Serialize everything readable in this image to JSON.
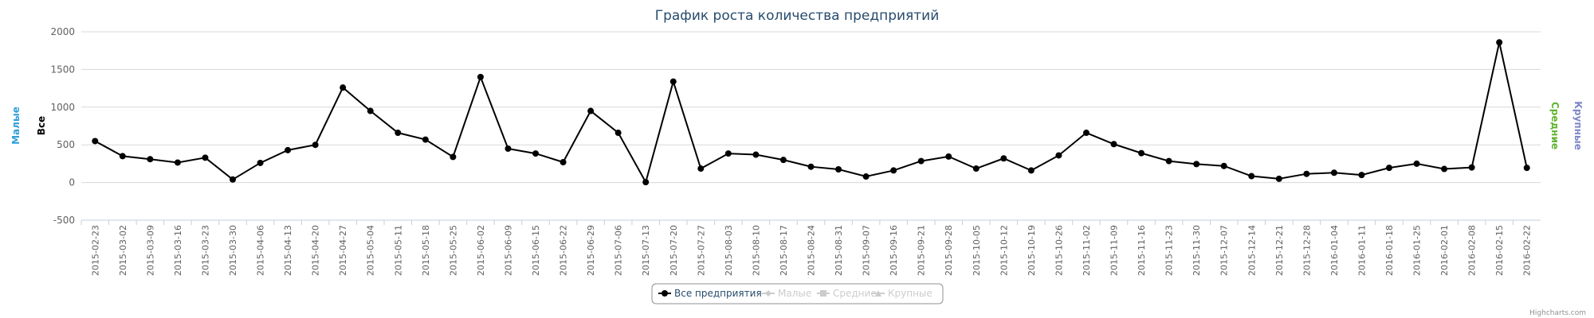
{
  "chart_data": {
    "type": "line",
    "title": "График роста количества предприятий",
    "categories": [
      "2015-02-23",
      "2015-03-02",
      "2015-03-09",
      "2015-03-16",
      "2015-03-23",
      "2015-03-30",
      "2015-04-06",
      "2015-04-13",
      "2015-04-20",
      "2015-04-27",
      "2015-05-04",
      "2015-05-11",
      "2015-05-18",
      "2015-05-25",
      "2015-06-02",
      "2015-06-09",
      "2015-06-15",
      "2015-06-22",
      "2015-06-29",
      "2015-07-06",
      "2015-07-13",
      "2015-07-20",
      "2015-07-27",
      "2015-08-03",
      "2015-08-10",
      "2015-08-17",
      "2015-08-24",
      "2015-08-31",
      "2015-09-07",
      "2015-09-16",
      "2015-09-21",
      "2015-09-28",
      "2015-10-05",
      "2015-10-12",
      "2015-10-19",
      "2015-10-26",
      "2015-11-02",
      "2015-11-09",
      "2015-11-16",
      "2015-11-23",
      "2015-11-30",
      "2015-12-07",
      "2015-12-14",
      "2015-12-21",
      "2015-12-28",
      "2016-01-04",
      "2016-01-11",
      "2016-01-18",
      "2016-01-25",
      "2016-02-01",
      "2016-02-08",
      "2016-02-15",
      "2016-02-22"
    ],
    "series": [
      {
        "name": "Все предприятия",
        "color": "#000000",
        "visible": true,
        "values": [
          550,
          350,
          310,
          265,
          330,
          40,
          260,
          430,
          500,
          1260,
          950,
          660,
          570,
          340,
          1400,
          450,
          385,
          270,
          950,
          660,
          5,
          1340,
          185,
          385,
          370,
          300,
          210,
          175,
          80,
          160,
          285,
          345,
          185,
          320,
          160,
          360,
          660,
          510,
          390,
          285,
          245,
          220,
          85,
          50,
          115,
          130,
          100,
          195,
          250,
          180,
          200,
          1860,
          195
        ]
      },
      {
        "name": "Малые",
        "color": "#2f9fd8",
        "visible": false
      },
      {
        "name": "Средние",
        "color": "#5fb32f",
        "visible": false
      },
      {
        "name": "Крупные",
        "color": "#7d86c8",
        "visible": false
      }
    ],
    "axis_titles": [
      {
        "title": "Малые",
        "color": "#2f9fd8",
        "side": "left"
      },
      {
        "title": "Все",
        "color": "#000000",
        "side": "left"
      },
      {
        "title": "Средние",
        "color": "#5fb32f",
        "side": "right"
      },
      {
        "title": "Крупные",
        "color": "#7d86c8",
        "side": "right"
      }
    ],
    "ylim": [
      -500,
      2000
    ],
    "yticks": [
      -500,
      0,
      500,
      1000,
      1500,
      2000
    ],
    "grid": true,
    "legend": "bottom",
    "credits": "Highcharts.com"
  }
}
